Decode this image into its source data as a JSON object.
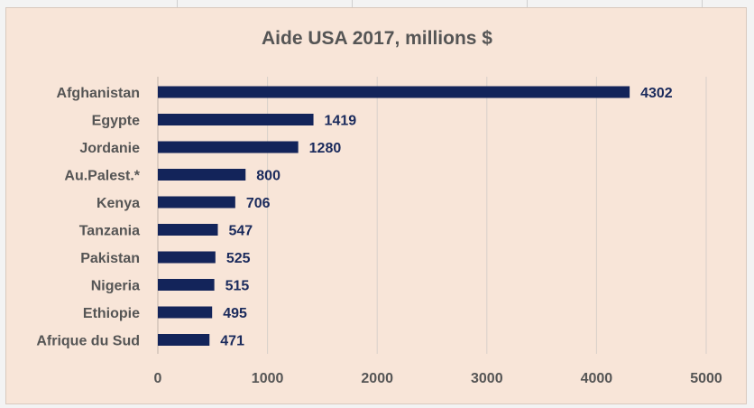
{
  "chart_data": {
    "type": "bar",
    "orientation": "horizontal",
    "title": "Aide  USA 2017, millions $",
    "xlabel": "",
    "ylabel": "",
    "categories": [
      "Afghanistan",
      "Egypte",
      "Jordanie",
      "Au.Palest.*",
      "Kenya",
      "Tanzania",
      "Pakistan",
      "Nigeria",
      "Ethiopie",
      "Afrique du Sud"
    ],
    "values": [
      4302,
      1419,
      1280,
      800,
      706,
      547,
      525,
      515,
      495,
      471
    ],
    "xlim": [
      0,
      5000
    ],
    "xticks": [
      "0",
      "1000",
      "2000",
      "3000",
      "4000",
      "5000"
    ],
    "grid": true,
    "legend": "none",
    "colors": {
      "bar": "#13245a",
      "background": "#f8e5d8",
      "gridline": "#d8d0ca",
      "text": "#555555",
      "data_label": "#1a2a5c"
    }
  }
}
